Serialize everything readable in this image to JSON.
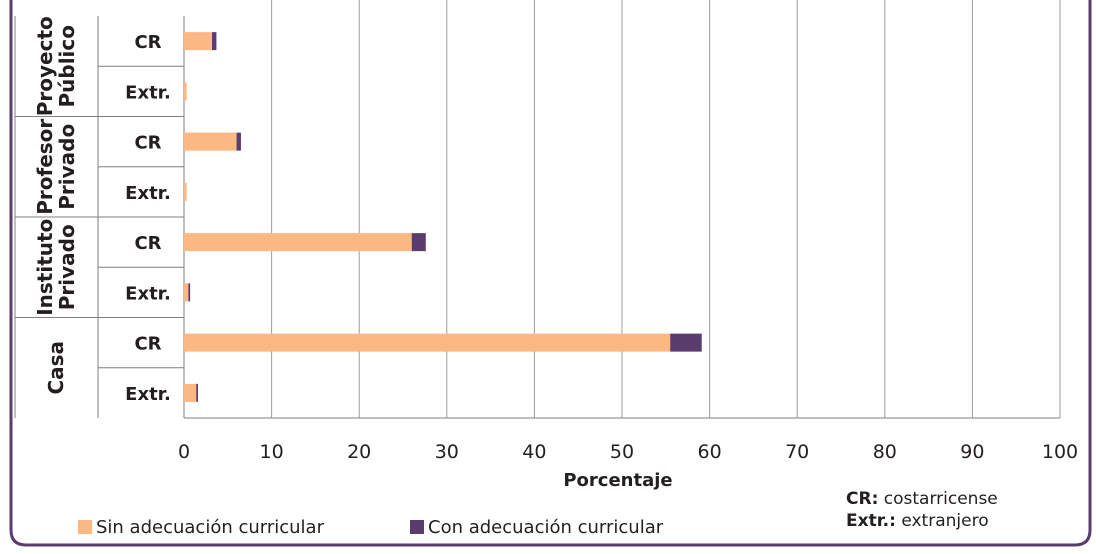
{
  "chart_data": {
    "type": "bar",
    "orientation": "horizontal",
    "stacked": true,
    "title": "",
    "xlabel": "Porcentaje",
    "ylabel": "",
    "xlim": [
      0,
      100
    ],
    "xticks": [
      "0",
      "10",
      "20",
      "30",
      "40",
      "50",
      "60",
      "70",
      "80",
      "90",
      "100"
    ],
    "groups": [
      {
        "label": "Proyecto Público",
        "label_lines": [
          "Proyecto",
          "Público"
        ],
        "rows": [
          "CR",
          "Extr."
        ]
      },
      {
        "label": "Profesor Privado",
        "label_lines": [
          "Profesor",
          "Privado"
        ],
        "rows": [
          "CR",
          "Extr."
        ]
      },
      {
        "label": "Instituto Privado",
        "label_lines": [
          "Instituto",
          "Privado"
        ],
        "rows": [
          "CR",
          "Extr."
        ]
      },
      {
        "label": "Casa",
        "label_lines": [
          "Casa"
        ],
        "rows": [
          "CR",
          "Extr."
        ]
      }
    ],
    "series": [
      {
        "name": "Sin adecuación curricular",
        "color": "#fbb882",
        "values": [
          3.2,
          0.3,
          6.0,
          0.3,
          26.0,
          0.5,
          55.5,
          1.4
        ]
      },
      {
        "name": "Con adecuación curricular",
        "color": "#5a3d6e",
        "values": [
          0.5,
          0.0,
          0.5,
          0.0,
          1.6,
          0.2,
          3.6,
          0.2
        ]
      }
    ],
    "grid": true,
    "legend_position": "bottom-left"
  },
  "notes": [
    {
      "abbr": "CR:",
      "text": "costarricense"
    },
    {
      "abbr": "Extr.:",
      "text": "extranjero"
    }
  ],
  "colors": {
    "frame": "#5a3d6e",
    "grid": "#9d9d9d",
    "axis": "#7f7f7f"
  }
}
